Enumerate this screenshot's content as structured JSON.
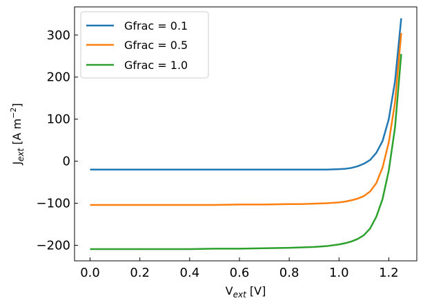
{
  "chart_data": {
    "type": "line",
    "title": "",
    "xlabel": {
      "base": "V",
      "sub": "ext",
      "unit": " [V]"
    },
    "ylabel": {
      "base": "J",
      "sub": "ext",
      "unit_pre": " [A m",
      "unit_sup": "−2",
      "unit_post": "]"
    },
    "xlim": [
      -0.0625,
      1.3125
    ],
    "ylim": [
      -237,
      367
    ],
    "xticks": [
      0.0,
      0.2,
      0.4,
      0.6,
      0.8,
      1.0,
      1.2
    ],
    "xtick_labels": [
      "0.0",
      "0.2",
      "0.4",
      "0.6",
      "0.8",
      "1.0",
      "1.2"
    ],
    "yticks": [
      -200,
      -100,
      0,
      100,
      200,
      300
    ],
    "ytick_labels": [
      "−200",
      "−100",
      "0",
      "100",
      "200",
      "300"
    ],
    "grid": false,
    "legend_position": "top-left",
    "series": [
      {
        "name": "Gfrac = 0.1",
        "color": "#1f77b4",
        "x": [
          0.0,
          0.1,
          0.2,
          0.3,
          0.4,
          0.5,
          0.6,
          0.7,
          0.8,
          0.85,
          0.9,
          0.95,
          1.0,
          1.025,
          1.05,
          1.075,
          1.1,
          1.125,
          1.15,
          1.175,
          1.2,
          1.225,
          1.25
        ],
        "y": [
          -20,
          -20,
          -20,
          -20,
          -20,
          -20,
          -20,
          -20,
          -20,
          -20,
          -20,
          -20,
          -19,
          -18,
          -16,
          -12,
          -6,
          3,
          20,
          48,
          100,
          190,
          340
        ]
      },
      {
        "name": "Gfrac = 0.5",
        "color": "#ff7f0e",
        "x": [
          0.0,
          0.1,
          0.2,
          0.3,
          0.4,
          0.5,
          0.6,
          0.7,
          0.8,
          0.85,
          0.9,
          0.95,
          1.0,
          1.025,
          1.05,
          1.075,
          1.1,
          1.125,
          1.15,
          1.175,
          1.2,
          1.225,
          1.25
        ],
        "y": [
          -104,
          -104,
          -104,
          -104,
          -104,
          -104,
          -103,
          -103,
          -102,
          -102,
          -101,
          -100,
          -98,
          -96,
          -93,
          -89,
          -83,
          -72,
          -52,
          -15,
          45,
          140,
          305
        ]
      },
      {
        "name": "Gfrac = 1.0",
        "color": "#2ca02c",
        "x": [
          0.0,
          0.1,
          0.2,
          0.3,
          0.4,
          0.5,
          0.6,
          0.7,
          0.8,
          0.85,
          0.9,
          0.95,
          1.0,
          1.025,
          1.05,
          1.075,
          1.1,
          1.125,
          1.15,
          1.175,
          1.2,
          1.225,
          1.25
        ],
        "y": [
          -209,
          -209,
          -209,
          -209,
          -209,
          -208,
          -208,
          -207,
          -206,
          -205,
          -204,
          -202,
          -198,
          -195,
          -191,
          -185,
          -176,
          -160,
          -132,
          -90,
          -22,
          80,
          255
        ]
      }
    ]
  }
}
